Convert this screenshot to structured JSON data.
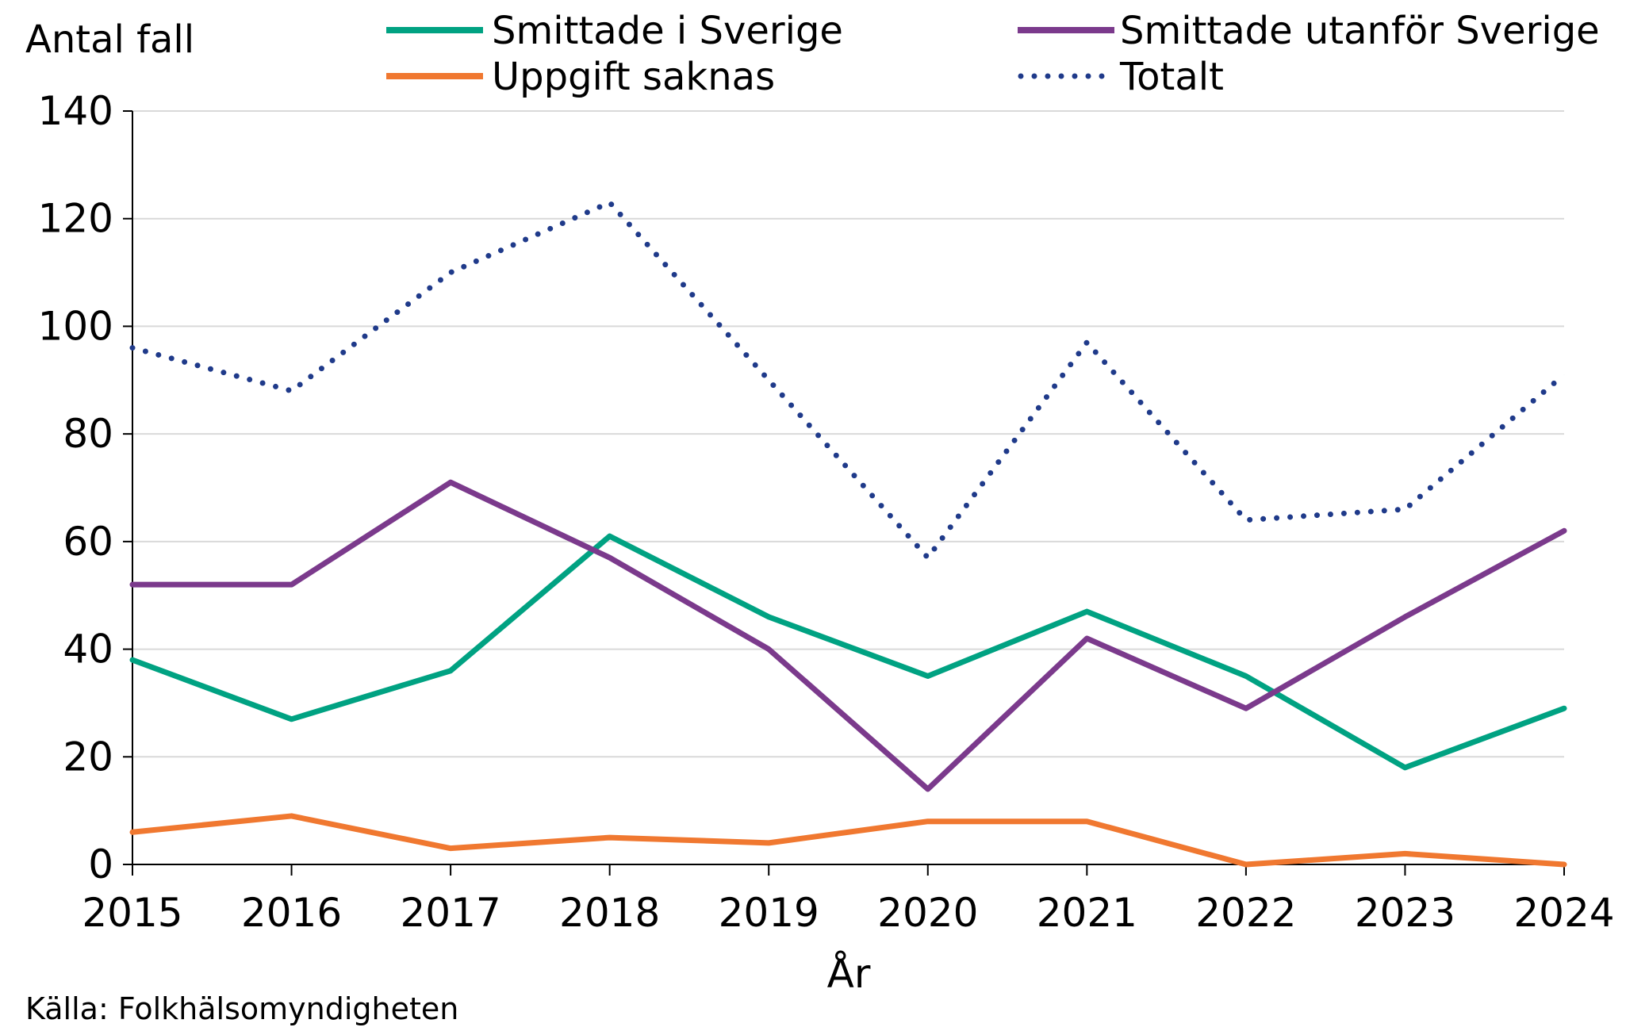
{
  "chart_data": {
    "type": "line",
    "title": "",
    "ylabel": "Antal fall",
    "xlabel": "År",
    "source": "Källa: Folkhälsomyndigheten",
    "categories": [
      "2015",
      "2016",
      "2017",
      "2018",
      "2019",
      "2020",
      "2021",
      "2022",
      "2023",
      "2024"
    ],
    "ylim": [
      0,
      140
    ],
    "yticks": [
      0,
      20,
      40,
      60,
      80,
      100,
      120,
      140
    ],
    "grid": true,
    "legend_position": "top",
    "series": [
      {
        "name": "Smittade i Sverige",
        "color": "#00A282",
        "style": "solid",
        "values": [
          38,
          27,
          36,
          61,
          46,
          35,
          47,
          35,
          18,
          29
        ]
      },
      {
        "name": "Smittade utanför Sverige",
        "color": "#7B3A8C",
        "style": "solid",
        "values": [
          52,
          52,
          71,
          57,
          40,
          14,
          42,
          29,
          46,
          62
        ]
      },
      {
        "name": "Uppgift saknas",
        "color": "#F07830",
        "style": "solid",
        "values": [
          6,
          9,
          3,
          5,
          4,
          8,
          8,
          0,
          2,
          0
        ]
      },
      {
        "name": "Totalt",
        "color": "#1F3A8A",
        "style": "dotted",
        "values": [
          96,
          88,
          110,
          123,
          90,
          57,
          97,
          64,
          66,
          91
        ]
      }
    ]
  }
}
